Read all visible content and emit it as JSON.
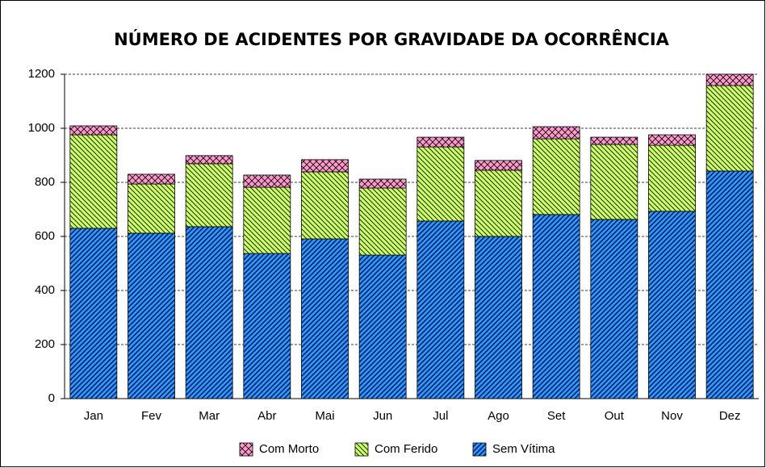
{
  "chart_data": {
    "type": "stacked_bar",
    "title": "NÚMERO DE ACIDENTES POR GRAVIDADE DA OCORRÊNCIA",
    "categories": [
      "Jan",
      "Fev",
      "Mar",
      "Abr",
      "Mai",
      "Jun",
      "Jul",
      "Ago",
      "Set",
      "Out",
      "Nov",
      "Dez"
    ],
    "series": [
      {
        "name": "Sem Vítima",
        "color": "#3399ff",
        "values": [
          630,
          612,
          636,
          537,
          591,
          531,
          657,
          600,
          681,
          663,
          693,
          842
        ]
      },
      {
        "name": "Com Ferido",
        "color": "#ccff66",
        "values": [
          346,
          182,
          233,
          245,
          248,
          248,
          274,
          245,
          280,
          277,
          244,
          316
        ]
      },
      {
        "name": "Com Morto",
        "color": "#ff99cc",
        "values": [
          33,
          36,
          30,
          45,
          45,
          33,
          36,
          36,
          45,
          27,
          39,
          42
        ]
      }
    ],
    "ylim": [
      0,
      1200
    ],
    "yticks": [
      0,
      200,
      400,
      600,
      800,
      1000,
      1200
    ],
    "grid": true
  }
}
